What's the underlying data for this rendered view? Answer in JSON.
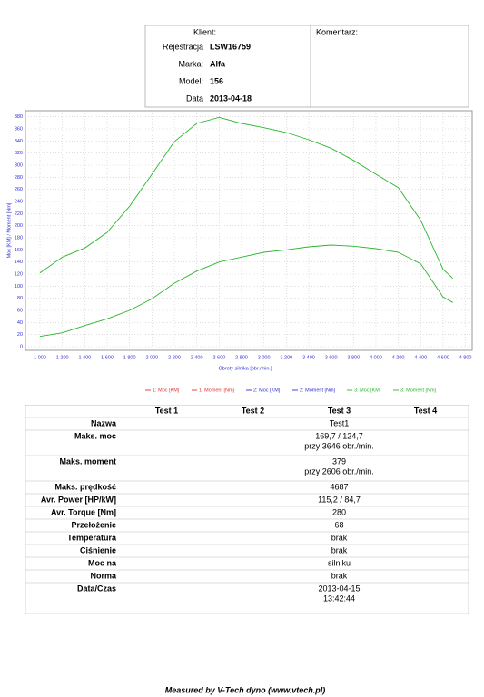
{
  "header": {
    "client_label": "Klient:",
    "fields": [
      {
        "label": "Rejestracja",
        "value": "LSW16759"
      },
      {
        "label": "Marka:",
        "value": "Alfa"
      },
      {
        "label": "Model:",
        "value": "156"
      },
      {
        "label": "Data",
        "value": "2013-04-18"
      }
    ],
    "comment_label": "Komentarz:"
  },
  "chart_data": {
    "type": "line",
    "x_label": "Obroty silnika [obr./min.]",
    "y_label": "Moc [KM] / Moment [Nm]",
    "x": [
      1000,
      1200,
      1400,
      1600,
      1800,
      2000,
      2200,
      2400,
      2600,
      2800,
      3000,
      3200,
      3400,
      3600,
      3800,
      4000,
      4200,
      4400,
      4600,
      4687
    ],
    "series": [
      {
        "name": "1: Moc [KM]",
        "color": "#e03030",
        "values": [
          null,
          null,
          null,
          null,
          null,
          null,
          null,
          null,
          null,
          null,
          null,
          null,
          null,
          null,
          null,
          null,
          null,
          null,
          null,
          null
        ]
      },
      {
        "name": "1: Moment [Nm]",
        "color": "#e03030",
        "values": [
          null,
          null,
          null,
          null,
          null,
          null,
          null,
          null,
          null,
          null,
          null,
          null,
          null,
          null,
          null,
          null,
          null,
          null,
          null,
          null
        ]
      },
      {
        "name": "2: Moc [KM]",
        "color": "#3030d0",
        "values": [
          null,
          null,
          null,
          null,
          null,
          null,
          null,
          null,
          null,
          null,
          null,
          null,
          null,
          null,
          null,
          null,
          null,
          null,
          null,
          null
        ]
      },
      {
        "name": "2: Moment [Nm]",
        "color": "#3030d0",
        "values": [
          null,
          null,
          null,
          null,
          null,
          null,
          null,
          null,
          null,
          null,
          null,
          null,
          null,
          null,
          null,
          null,
          null,
          null,
          null,
          null
        ]
      },
      {
        "name": "3: Moc [KM]",
        "color": "#2db52d",
        "values": [
          17,
          23,
          35,
          46,
          60,
          79,
          105,
          125,
          140,
          148,
          156,
          160,
          165,
          168,
          166,
          162,
          156,
          137,
          82,
          73
        ]
      },
      {
        "name": "3: Moment [Nm]",
        "color": "#2db52d",
        "values": [
          122,
          148,
          163,
          189,
          232,
          285,
          339,
          369,
          379,
          369,
          362,
          354,
          342,
          328,
          308,
          285,
          263,
          209,
          128,
          113
        ]
      }
    ],
    "xlim": [
      870,
      4860
    ],
    "ylim": [
      0,
      390
    ],
    "xticks": [
      {
        "value": 1000,
        "label": "1 000"
      },
      {
        "value": 1200,
        "label": "1 200"
      },
      {
        "value": 1400,
        "label": "1 400"
      },
      {
        "value": 1600,
        "label": "1 600"
      },
      {
        "value": 1800,
        "label": "1 800"
      },
      {
        "value": 2000,
        "label": "2 000"
      },
      {
        "value": 2200,
        "label": "2 200"
      },
      {
        "value": 2400,
        "label": "2 400"
      },
      {
        "value": 2600,
        "label": "2 600"
      },
      {
        "value": 2800,
        "label": "2 800"
      },
      {
        "value": 3000,
        "label": "3 000"
      },
      {
        "value": 3200,
        "label": "3 200"
      },
      {
        "value": 3400,
        "label": "3 400"
      },
      {
        "value": 3600,
        "label": "3 600"
      },
      {
        "value": 3800,
        "label": "3 800"
      },
      {
        "value": 4000,
        "label": "4 000"
      },
      {
        "value": 4200,
        "label": "4 200"
      },
      {
        "value": 4400,
        "label": "4 400"
      },
      {
        "value": 4600,
        "label": "4 600"
      },
      {
        "value": 4800,
        "label": "4 800"
      }
    ],
    "yticks": [
      0,
      20,
      40,
      60,
      80,
      100,
      120,
      140,
      160,
      180,
      200,
      220,
      240,
      260,
      280,
      300,
      320,
      340,
      360,
      380
    ],
    "grid": true
  },
  "table": {
    "columns": [
      "Test 1",
      "Test 2",
      "Test 3",
      "Test 4"
    ],
    "rows": [
      {
        "label": "Nazwa",
        "test3": [
          "Test1"
        ]
      },
      {
        "label": "Maks. moc",
        "test3": [
          "169,7 / 124,7",
          "przy 3646 obr./min."
        ]
      },
      {
        "label": "Maks. moment",
        "test3": [
          "379",
          "przy 2606 obr./min."
        ]
      },
      {
        "label": "Maks. prędkość",
        "test3": [
          "4687"
        ]
      },
      {
        "label": "Avr. Power [HP/kW]",
        "test3": [
          "115,2 / 84,7"
        ]
      },
      {
        "label": "Avr. Torque [Nm]",
        "test3": [
          "280"
        ]
      },
      {
        "label": "Przełożenie",
        "test3": [
          "68"
        ]
      },
      {
        "label": "Temperatura",
        "test3": [
          "brak"
        ]
      },
      {
        "label": "Ciśnienie",
        "test3": [
          "brak"
        ]
      },
      {
        "label": "Moc na",
        "test3": [
          "silniku"
        ]
      },
      {
        "label": "Norma",
        "test3": [
          "brak"
        ]
      },
      {
        "label": "Data/Czas",
        "test3": [
          "2013-04-15",
          "13:42:44"
        ]
      }
    ]
  },
  "footer": "Measured by V-Tech dyno (www.vtech.pl)"
}
